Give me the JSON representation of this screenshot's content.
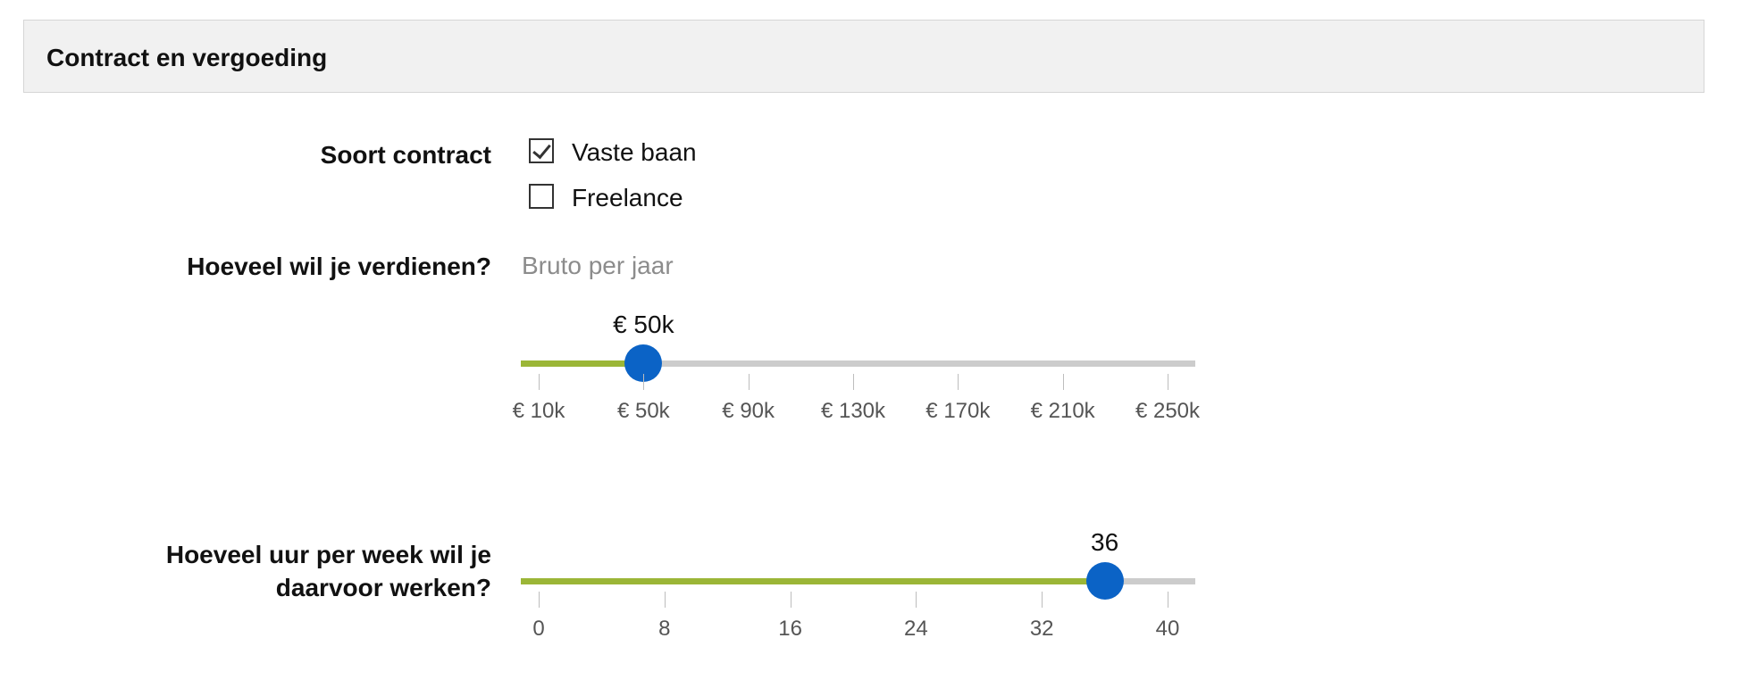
{
  "section": {
    "title": "Contract en vergoeding"
  },
  "contract": {
    "label": "Soort contract",
    "options": [
      {
        "label": "Vaste baan",
        "checked": true
      },
      {
        "label": "Freelance",
        "checked": false
      }
    ]
  },
  "salary": {
    "label": "Hoeveel wil je verdienen?",
    "hint": "Bruto per jaar",
    "value_label": "€ 50k",
    "value": 50,
    "min": 10,
    "max": 250,
    "ticks": [
      "€ 10k",
      "€ 50k",
      "€ 90k",
      "€ 130k",
      "€ 170k",
      "€ 210k",
      "€ 250k"
    ],
    "tick_values": [
      10,
      50,
      90,
      130,
      170,
      210,
      250
    ]
  },
  "hours": {
    "label_line1": "Hoeveel uur per week wil je",
    "label_line2": "daarvoor werken?",
    "value_label": "36",
    "value": 36,
    "min": 0,
    "max": 40,
    "ticks": [
      "0",
      "8",
      "16",
      "24",
      "32",
      "40"
    ],
    "tick_values": [
      0,
      8,
      16,
      24,
      32,
      40
    ]
  },
  "colors": {
    "fill": "#9bb637",
    "handle": "#0b63c6",
    "track": "#cccccc"
  }
}
